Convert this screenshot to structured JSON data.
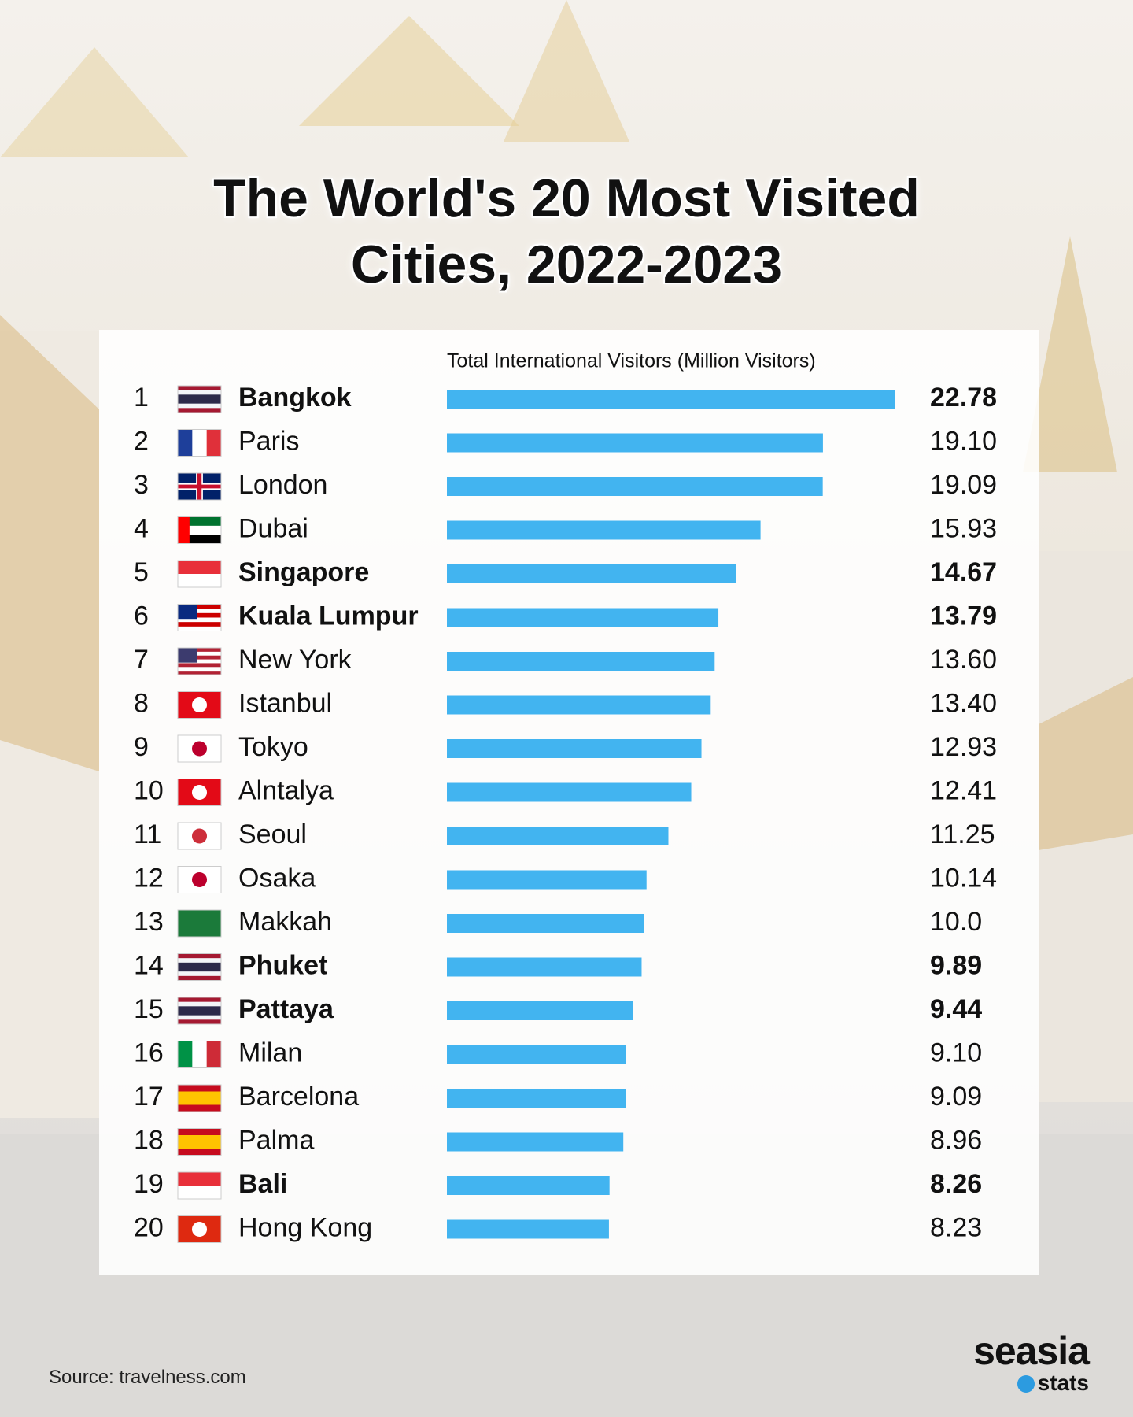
{
  "chart_data": {
    "type": "bar",
    "orientation": "horizontal",
    "title": "The World's 20 Most Visited Cities, 2022-2023",
    "xlabel": "Total International Visitors (Million Visitors)",
    "ranks": [
      1,
      2,
      3,
      4,
      5,
      6,
      7,
      8,
      9,
      10,
      11,
      12,
      13,
      14,
      15,
      16,
      17,
      18,
      19,
      20
    ],
    "categories": [
      "Bangkok",
      "Paris",
      "London",
      "Dubai",
      "Singapore",
      "Kuala Lumpur",
      "New York",
      "Istanbul",
      "Tokyo",
      "Alntalya",
      "Seoul",
      "Osaka",
      "Makkah",
      "Phuket",
      "Pattaya",
      "Milan",
      "Barcelona",
      "Palma",
      "Bali",
      "Hong Kong"
    ],
    "values": [
      22.78,
      19.1,
      19.09,
      15.93,
      14.67,
      13.79,
      13.6,
      13.4,
      12.93,
      12.41,
      11.25,
      10.14,
      10,
      9.89,
      9.44,
      9.1,
      9.09,
      8.96,
      8.26,
      8.23
    ],
    "value_labels": [
      "22.78",
      "19.10",
      "19.09",
      "15.93",
      "14.67",
      "13.79",
      "13.60",
      "13.40",
      "12.93",
      "12.41",
      "11.25",
      "10.14",
      "10.0",
      "9.89",
      "9.44",
      "9.10",
      "9.09",
      "8.96",
      "8.26",
      "8.23"
    ],
    "highlighted": [
      true,
      false,
      false,
      false,
      true,
      true,
      false,
      false,
      false,
      false,
      false,
      false,
      false,
      true,
      true,
      false,
      false,
      false,
      true,
      false
    ],
    "color": "#42b4f0"
  },
  "source": "Source: travelness.com",
  "logo": {
    "name": "seasia",
    "sub": "stats"
  }
}
